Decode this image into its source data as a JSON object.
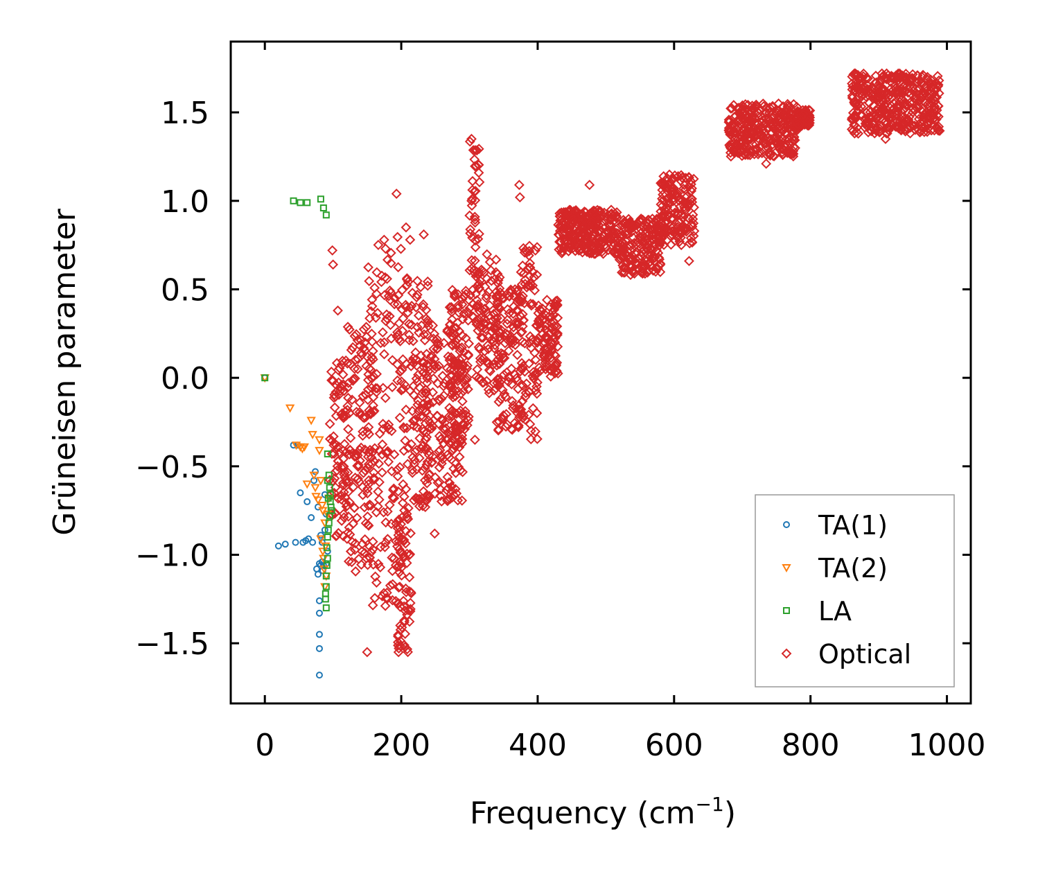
{
  "chart_data": {
    "type": "scatter",
    "title": "",
    "xlabel": "Frequency (cm",
    "xlabel_sup": "−1",
    "xlabel_end": ")",
    "ylabel": "Grüneisen parameter",
    "xlim": [
      -50,
      1035
    ],
    "ylim": [
      -1.84,
      1.9
    ],
    "xticks": [
      0,
      200,
      400,
      600,
      800,
      1000
    ],
    "xtick_labels": [
      "0",
      "200",
      "400",
      "600",
      "800",
      "1000"
    ],
    "yticks": [
      1.5,
      1.0,
      0.5,
      0.0,
      -0.5,
      -1.0,
      -1.5
    ],
    "ytick_labels": [
      "1.5",
      "1.0",
      "0.5",
      "0.0",
      "−0.5",
      "−1.0",
      "−1.5"
    ],
    "legend_position": "bottom-right",
    "series": [
      {
        "name": "TA(1)",
        "marker": "circle",
        "color": "#1f77b4",
        "points": [
          [
            0,
            0
          ],
          [
            20,
            -0.95
          ],
          [
            30,
            -0.94
          ],
          [
            42,
            -0.38
          ],
          [
            45,
            -0.93
          ],
          [
            52,
            -0.65
          ],
          [
            60,
            -0.92
          ],
          [
            62,
            -0.7
          ],
          [
            68,
            -0.79
          ],
          [
            72,
            -0.58
          ],
          [
            74,
            -0.53
          ],
          [
            76,
            -1.08
          ],
          [
            78,
            -1.11
          ],
          [
            80,
            -1.05
          ],
          [
            80,
            -1.68
          ],
          [
            80,
            -1.53
          ],
          [
            80,
            -1.45
          ],
          [
            80,
            -1.33
          ],
          [
            80,
            -1.26
          ],
          [
            82,
            -0.89
          ],
          [
            84,
            -0.93
          ],
          [
            85,
            -1.09
          ],
          [
            86,
            -1.06
          ],
          [
            88,
            -0.86
          ],
          [
            88,
            -0.66
          ],
          [
            90,
            -0.77
          ],
          [
            90,
            -1.05
          ],
          [
            92,
            -0.98
          ],
          [
            78,
            -0.73
          ],
          [
            70,
            -0.93
          ],
          [
            64,
            -0.91
          ],
          [
            56,
            -0.93
          ],
          [
            48,
            -0.38
          ],
          [
            82,
            -1.06
          ],
          [
            84,
            -1.04
          ]
        ]
      },
      {
        "name": "TA(2)",
        "marker": "triangle-down",
        "color": "#ff7f0e",
        "points": [
          [
            0,
            0
          ],
          [
            37,
            -0.17
          ],
          [
            46,
            -0.38
          ],
          [
            52,
            -0.39
          ],
          [
            55,
            -0.4
          ],
          [
            58,
            -0.39
          ],
          [
            62,
            -0.6
          ],
          [
            68,
            -0.24
          ],
          [
            70,
            -0.32
          ],
          [
            72,
            -0.55
          ],
          [
            74,
            -0.62
          ],
          [
            75,
            -0.67
          ],
          [
            78,
            -0.69
          ],
          [
            80,
            -0.35
          ],
          [
            80,
            -0.41
          ],
          [
            82,
            -0.58
          ],
          [
            84,
            -0.72
          ],
          [
            85,
            -0.98
          ],
          [
            86,
            -1.02
          ],
          [
            87,
            -1.08
          ],
          [
            88,
            -0.82
          ],
          [
            88,
            -1.18
          ],
          [
            90,
            -1.12
          ],
          [
            92,
            -0.77
          ],
          [
            94,
            -0.68
          ],
          [
            82,
            -0.91
          ],
          [
            85,
            -0.75
          ],
          [
            89,
            -0.95
          ]
        ]
      },
      {
        "name": "LA",
        "marker": "square",
        "color": "#2ca02c",
        "points": [
          [
            0,
            0
          ],
          [
            42,
            1.0
          ],
          [
            52,
            0.99
          ],
          [
            62,
            0.99
          ],
          [
            82,
            1.01
          ],
          [
            86,
            0.96
          ],
          [
            90,
            0.92
          ],
          [
            92,
            -0.43
          ],
          [
            92,
            -0.58
          ],
          [
            94,
            -0.55
          ],
          [
            95,
            -0.62
          ],
          [
            96,
            -0.66
          ],
          [
            96,
            -0.7
          ],
          [
            97,
            -0.73
          ],
          [
            98,
            -0.75
          ],
          [
            95,
            -0.78
          ],
          [
            94,
            -0.82
          ],
          [
            93,
            -0.86
          ],
          [
            92,
            -0.9
          ],
          [
            92,
            -1.02
          ],
          [
            91,
            -1.06
          ],
          [
            90,
            -1.12
          ],
          [
            90,
            -1.18
          ],
          [
            89,
            -1.22
          ],
          [
            89,
            -1.25
          ],
          [
            90,
            -1.3
          ],
          [
            91,
            -0.96
          ],
          [
            93,
            -0.68
          ]
        ]
      },
      {
        "name": "Optical",
        "marker": "diamond",
        "color": "#d62728",
        "clusters": [
          {
            "range": [
              95,
              125
            ],
            "y": [
              -0.9,
              0.1
            ]
          },
          {
            "range": [
              120,
              160
            ],
            "y": [
              -1.1,
              0.3
            ]
          },
          {
            "range": [
              150,
              200
            ],
            "y": [
              -1.3,
              0.8
            ]
          },
          {
            "range": [
              195,
              215
            ],
            "y": [
              -1.55,
              -0.7
            ]
          },
          {
            "range": [
              200,
              240
            ],
            "y": [
              -0.8,
              0.6
            ]
          },
          {
            "range": [
              230,
              290
            ],
            "y": [
              -0.7,
              0.3
            ]
          },
          {
            "range": [
              270,
              300
            ],
            "y": [
              -0.3,
              0.5
            ]
          },
          {
            "range": [
              300,
              315
            ],
            "y": [
              0.3,
              1.35
            ]
          },
          {
            "range": [
              310,
              345
            ],
            "y": [
              -0.1,
              0.7
            ]
          },
          {
            "range": [
              340,
              380
            ],
            "y": [
              -0.3,
              0.5
            ]
          },
          {
            "range": [
              375,
              400
            ],
            "y": [
              -0.35,
              0.75
            ]
          },
          {
            "range": [
              400,
              430
            ],
            "y": [
              0.0,
              0.45
            ]
          },
          {
            "range": [
              430,
              520
            ],
            "y": [
              0.7,
              0.95
            ]
          },
          {
            "range": [
              520,
              580
            ],
            "y": [
              0.58,
              0.9
            ]
          },
          {
            "range": [
              580,
              630
            ],
            "y": [
              0.75,
              1.15
            ]
          },
          {
            "range": [
              680,
              780
            ],
            "y": [
              1.25,
              1.55
            ]
          },
          {
            "range": [
              780,
              800
            ],
            "y": [
              1.42,
              1.52
            ]
          },
          {
            "range": [
              860,
              990
            ],
            "y": [
              1.38,
              1.72
            ]
          }
        ],
        "points": [
          [
            193,
            1.04
          ],
          [
            373,
            1.09
          ],
          [
            476,
            1.09
          ],
          [
            622,
            0.66
          ],
          [
            150,
            -1.55
          ],
          [
            196,
            -1.55
          ],
          [
            308,
            -0.35
          ],
          [
            249,
            -0.88
          ],
          [
            99,
            0.72
          ],
          [
            100,
            0.64
          ],
          [
            107,
            0.38
          ],
          [
            207,
            0.85
          ],
          [
            213,
            0.78
          ],
          [
            233,
            0.81
          ],
          [
            232,
            0.4
          ],
          [
            303,
            1.35
          ],
          [
            374,
            1.02
          ],
          [
            910,
            1.35
          ],
          [
            735,
            1.21
          ]
        ]
      }
    ]
  }
}
